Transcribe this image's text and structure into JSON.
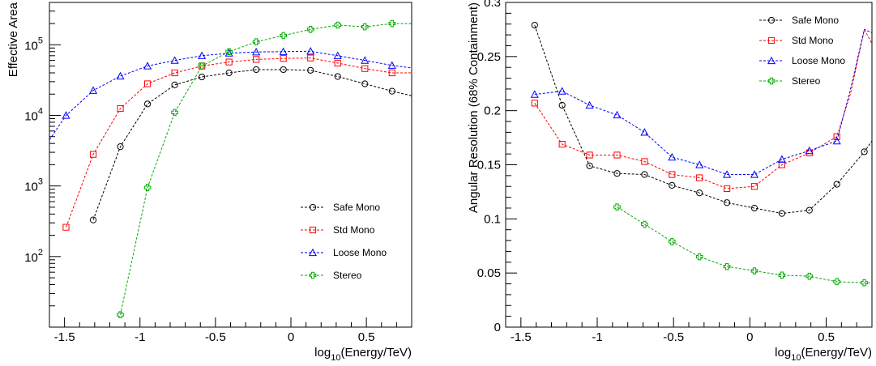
{
  "chart_data": [
    {
      "type": "line",
      "scale_y": "log",
      "xlabel_main": "log",
      "xlabel_sub": "10",
      "xlabel_rest": "(Energy/TeV)",
      "ylabel": "Effective Area",
      "xlim": [
        -1.6,
        0.8
      ],
      "ylim_exp": [
        1,
        5.6
      ],
      "x_ticks": [
        "-1.5",
        "-1",
        "-0.5",
        "0",
        "0.5"
      ],
      "y_ticks": [
        {
          "base": "10",
          "exp": "2",
          "value": 2
        },
        {
          "base": "10",
          "exp": "3",
          "value": 3
        },
        {
          "base": "10",
          "exp": "4",
          "value": 4
        },
        {
          "base": "10",
          "exp": "5",
          "value": 5
        }
      ],
      "legend": {
        "placement": "bottom-right",
        "entries": [
          "Safe Mono",
          "Std Mono",
          "Loose Mono",
          "Stereo"
        ]
      },
      "series": [
        {
          "name": "Safe Mono",
          "color": "#000000",
          "marker": "circle",
          "x": [
            -1.31,
            -1.13,
            -0.95,
            -0.77,
            -0.59,
            -0.41,
            -0.23,
            -0.05,
            0.13,
            0.31,
            0.49,
            0.67
          ],
          "y": [
            330,
            3600,
            14500,
            27000,
            35000,
            40000,
            44500,
            44500,
            43500,
            35500,
            28000,
            22000
          ],
          "tail_to": 19000
        },
        {
          "name": "Std Mono",
          "color": "#ff0000",
          "marker": "square",
          "x": [
            -1.49,
            -1.31,
            -1.13,
            -0.95,
            -0.77,
            -0.59,
            -0.41,
            -0.23,
            -0.05,
            0.13,
            0.31,
            0.49,
            0.67
          ],
          "y": [
            260,
            2800,
            12500,
            28000,
            40000,
            50000,
            57000,
            62000,
            64000,
            65000,
            55000,
            46000,
            40000
          ],
          "tail_to": 40000
        },
        {
          "name": "Loose Mono",
          "color": "#0000ff",
          "marker": "triangle",
          "x": [
            -1.49,
            -1.31,
            -1.13,
            -0.95,
            -0.77,
            -0.59,
            -0.41,
            -0.23,
            -0.05,
            0.13,
            0.31,
            0.49,
            0.67
          ],
          "y": [
            10000,
            22500,
            36000,
            50000,
            60000,
            70000,
            76000,
            79000,
            80000,
            81000,
            70000,
            60000,
            51000
          ],
          "head_from": 4500,
          "tail_to": 47000
        },
        {
          "name": "Stereo",
          "color": "#00aa00",
          "marker": "plus",
          "x": [
            -1.13,
            -0.95,
            -0.77,
            -0.59,
            -0.41,
            -0.23,
            -0.05,
            0.13,
            0.31,
            0.49,
            0.67
          ],
          "y": [
            15,
            950,
            11000,
            50000,
            80000,
            110000,
            135000,
            165000,
            190000,
            180000,
            200000
          ],
          "tail_to": 200000
        }
      ]
    },
    {
      "type": "line",
      "scale_y": "linear",
      "xlabel_main": "log",
      "xlabel_sub": "10",
      "xlabel_rest": "(Energy/TeV)",
      "ylabel": "Angular Resolution (68% Containment)",
      "xlim": [
        -1.6,
        0.8
      ],
      "ylim": [
        0,
        0.3
      ],
      "x_ticks": [
        "-1.5",
        "-1",
        "-0.5",
        "0",
        "0.5"
      ],
      "y_ticks": [
        "0",
        "0.05",
        "0.1",
        "0.15",
        "0.2",
        "0.25",
        "0.3"
      ],
      "legend": {
        "placement": "top-right",
        "entries": [
          "Safe Mono",
          "Std Mono",
          "Loose Mono",
          "Stereo"
        ]
      },
      "series": [
        {
          "name": "Safe Mono",
          "color": "#000000",
          "marker": "circle",
          "x": [
            -1.41,
            -1.23,
            -1.05,
            -0.87,
            -0.69,
            -0.51,
            -0.33,
            -0.15,
            0.03,
            0.21,
            0.39,
            0.57,
            0.75
          ],
          "y": [
            0.279,
            0.205,
            0.149,
            0.142,
            0.141,
            0.131,
            0.124,
            0.115,
            0.11,
            0.105,
            0.108,
            0.132,
            0.162
          ],
          "tail_to": 0.172
        },
        {
          "name": "Std Mono",
          "color": "#ff0000",
          "marker": "square",
          "x": [
            -1.41,
            -1.23,
            -1.05,
            -0.87,
            -0.69,
            -0.51,
            -0.33,
            -0.15,
            0.03,
            0.21,
            0.39,
            0.57
          ],
          "y": [
            0.207,
            0.169,
            0.159,
            0.159,
            0.153,
            0.141,
            0.138,
            0.128,
            0.13,
            0.15,
            0.161,
            0.176
          ],
          "tail": [
            [
              0.66,
              0.216
            ],
            [
              0.75,
              0.275
            ],
            [
              0.8,
              0.262
            ]
          ]
        },
        {
          "name": "Loose Mono",
          "color": "#0000ff",
          "marker": "triangle",
          "x": [
            -1.41,
            -1.23,
            -1.05,
            -0.87,
            -0.69,
            -0.51,
            -0.33,
            -0.15,
            0.03,
            0.21,
            0.39,
            0.57
          ],
          "y": [
            0.215,
            0.218,
            0.205,
            0.196,
            0.18,
            0.157,
            0.15,
            0.141,
            0.141,
            0.155,
            0.163,
            0.172
          ],
          "tail": [
            [
              0.66,
              0.22
            ],
            [
              0.75,
              0.275
            ],
            [
              0.8,
              0.272
            ]
          ]
        },
        {
          "name": "Stereo",
          "color": "#00aa00",
          "marker": "plus",
          "x": [
            -0.87,
            -0.69,
            -0.51,
            -0.33,
            -0.15,
            0.03,
            0.21,
            0.39,
            0.57,
            0.75
          ],
          "y": [
            0.111,
            0.095,
            0.079,
            0.065,
            0.056,
            0.052,
            0.048,
            0.047,
            0.042,
            0.041
          ],
          "tail_to": 0.041
        }
      ]
    }
  ]
}
